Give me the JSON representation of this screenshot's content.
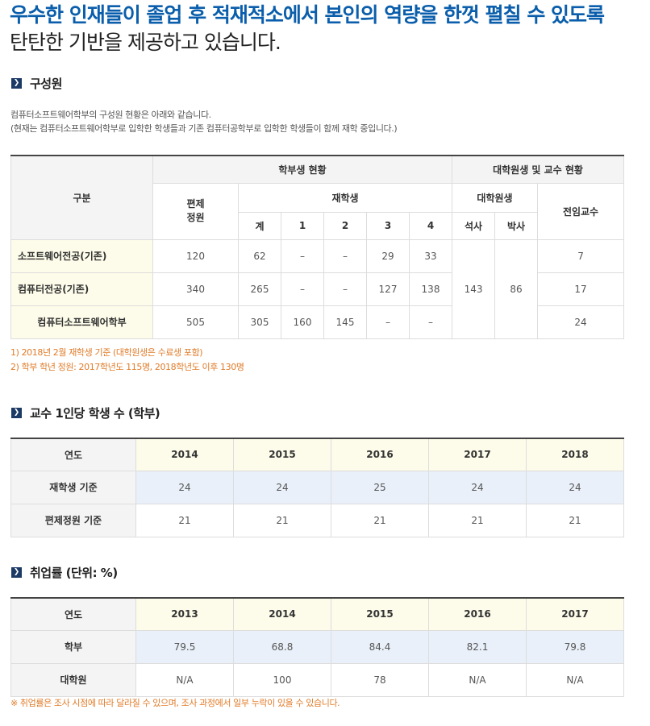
{
  "headline": {
    "line1": "우수한 인재들이 졸업 후 적재적소에서 본인의 역량을 한껏 펼칠 수 있도록",
    "line2": "탄탄한 기반을 제공하고 있습니다."
  },
  "icons": {
    "section_marker": "chevron-right-icon"
  },
  "colors": {
    "headline_blue": "#0a5eab",
    "note_orange": "#e07b28",
    "row_highlight": "#e9f0f9",
    "row_yellow": "#fdfbe9"
  },
  "members": {
    "title": "구성원",
    "desc1": "컴퓨터소프트웨어학부의 구성원 현황은 아래와 같습니다.",
    "desc2": "(현재는 컴퓨터소프트웨어학부로 입학한 학생들과 기존 컴퓨터공학부로 입학한 학생들이 함께 재학 중입니다.)",
    "header": {
      "division": "구분",
      "undergrad": "학부생 현황",
      "grad_prof": "대학원생 및 교수 현황",
      "quota": "편제\n정원",
      "enrolled": "재학생",
      "grad": "대학원생",
      "professor": "전임교수",
      "total": "계",
      "y1": "1",
      "y2": "2",
      "y3": "3",
      "y4": "4",
      "master": "석사",
      "doctor": "박사"
    },
    "rows": [
      {
        "name": "소프트웨어전공(기존)",
        "quota": "120",
        "total": "62",
        "y1": "–",
        "y2": "–",
        "y3": "29",
        "y4": "33",
        "prof": "7"
      },
      {
        "name": "컴퓨터전공(기존)",
        "quota": "340",
        "total": "265",
        "y1": "–",
        "y2": "–",
        "y3": "127",
        "y4": "138",
        "prof": "17"
      },
      {
        "name": "컴퓨터소프트웨어학부",
        "quota": "505",
        "total": "305",
        "y1": "160",
        "y2": "145",
        "y3": "–",
        "y4": "–",
        "prof": "24"
      }
    ],
    "master": "143",
    "doctor": "86",
    "note1": "1) 2018년 2월 재학생 기준 (대학원생은 수료생 포함)",
    "note2": "2) 학부 학년 정원: 2017학년도 115명, 2018학년도 이후 130명"
  },
  "ratio": {
    "title": "교수 1인당 학생 수 (학부)",
    "year_label": "연도",
    "years": [
      "2014",
      "2015",
      "2016",
      "2017",
      "2018"
    ],
    "row1_label": "재학생 기준",
    "row1": [
      "24",
      "24",
      "25",
      "24",
      "24"
    ],
    "row2_label": "편제정원 기준",
    "row2": [
      "21",
      "21",
      "21",
      "21",
      "21"
    ]
  },
  "employment": {
    "title": "취업률 (단위: %)",
    "year_label": "연도",
    "years": [
      "2013",
      "2014",
      "2015",
      "2016",
      "2017"
    ],
    "row1_label": "학부",
    "row1": [
      "79.5",
      "68.8",
      "84.4",
      "82.1",
      "79.8"
    ],
    "row2_label": "대학원",
    "row2": [
      "N/A",
      "100",
      "78",
      "N/A",
      "N/A"
    ],
    "note": "※ 취업률은 조사 시점에 따라 달라질 수 있으며, 조사 과정에서 일부 누락이 있을 수 있습니다."
  }
}
